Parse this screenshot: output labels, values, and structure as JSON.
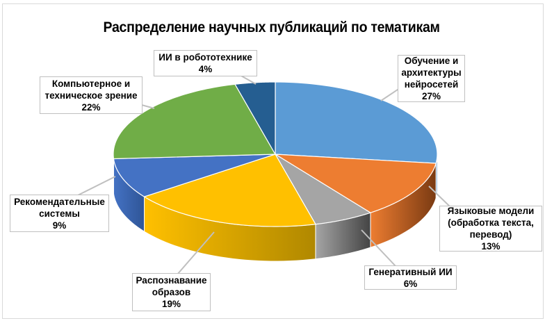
{
  "chart_data": {
    "type": "pie",
    "style": "3d",
    "title": "Распределение научных публикаций по тематикам",
    "start": "top-clockwise",
    "slices": [
      {
        "name": "Обучение и архитектуры нейросетей",
        "lines": [
          "Обучение и",
          "архитектуры",
          "нейросетей"
        ],
        "value": 27,
        "label": "27%",
        "color": "#5B9BD5",
        "side": "#3E74A8"
      },
      {
        "name": "Языковые модели (обработка текста, перевод)",
        "lines": [
          "Языковые модели",
          "(обработка текста,",
          "перевод)"
        ],
        "value": 13,
        "label": "13%",
        "color": "#ED7D31",
        "side": "#7A3A12"
      },
      {
        "name": "Генеративный ИИ",
        "lines": [
          "Генеративный ИИ"
        ],
        "value": 6,
        "label": "6%",
        "color": "#A5A5A5",
        "side": "#444444"
      },
      {
        "name": "Распознавание образов",
        "lines": [
          "Распознавание",
          "образов"
        ],
        "value": 19,
        "label": "19%",
        "color": "#FFC000",
        "side": "#B08800"
      },
      {
        "name": "Рекомендательные системы",
        "lines": [
          "Рекомендательные",
          "системы"
        ],
        "value": 9,
        "label": "9%",
        "color": "#4472C4",
        "side": "#2F5597"
      },
      {
        "name": "Компьютерное и техническое зрение",
        "lines": [
          "Компьютерное и",
          "техническое зрение"
        ],
        "value": 22,
        "label": "22%",
        "color": "#70AD47",
        "side": "#4E7A31"
      },
      {
        "name": "ИИ в робототехнике",
        "lines": [
          "ИИ в робототехнике"
        ],
        "value": 4,
        "label": "4%",
        "color": "#255E91",
        "side": "#173D5F"
      }
    ]
  }
}
